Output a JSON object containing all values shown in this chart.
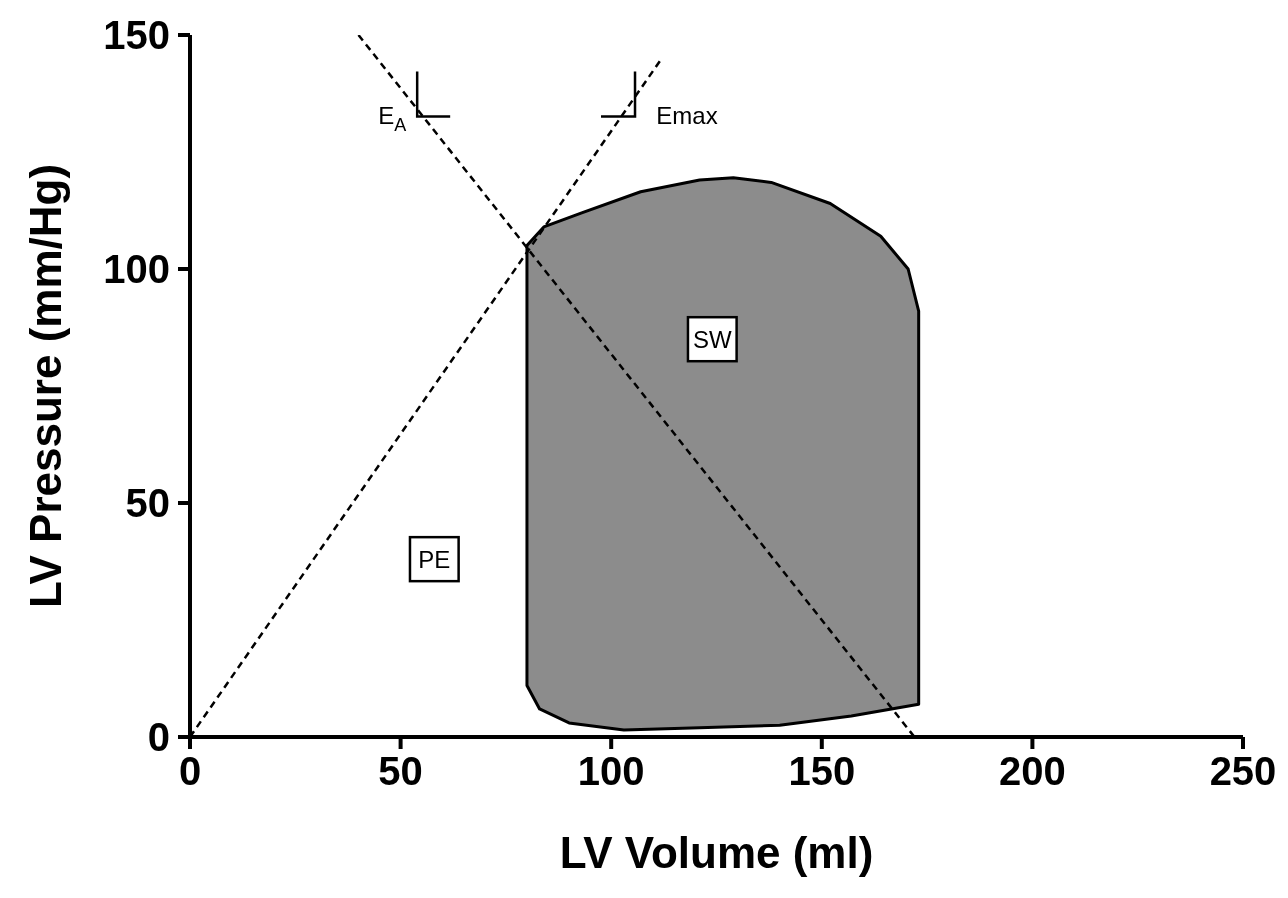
{
  "chart_data": {
    "type": "line",
    "xlabel": "LV Volume (ml)",
    "ylabel": "LV Pressure (mm/Hg)",
    "xlim": [
      0,
      250
    ],
    "xticks": [
      0,
      50,
      100,
      150,
      200,
      250
    ],
    "ylim": [
      0,
      150
    ],
    "yticks": [
      0,
      50,
      100,
      150
    ],
    "grid": false,
    "marker": "none",
    "series": [
      {
        "type": "area",
        "color": "#8c8c8c",
        "x": [
          80,
          84,
          93,
          107,
          121,
          129,
          138,
          152,
          164,
          170.5,
          173,
          173,
          157,
          140,
          121,
          103,
          90,
          83,
          80,
          80,
          80,
          80
        ],
        "values": [
          105,
          109,
          112,
          116.5,
          119,
          119.5,
          118.5,
          114,
          107,
          100,
          91,
          7,
          4.5,
          2.5,
          2,
          1.5,
          3,
          6,
          11,
          21,
          93,
          105
        ]
      },
      {
        "line_style": "dashed",
        "color": "#000000",
        "x": [
          0,
          112
        ],
        "values": [
          0,
          145
        ]
      },
      {
        "line_style": "dashed",
        "color": "#000000",
        "x": [
          40,
          172
        ],
        "values": [
          150,
          0
        ]
      }
    ],
    "annotations": [
      "E$_{A}$",
      "Emax",
      "SW",
      "PE"
    ]
  }
}
